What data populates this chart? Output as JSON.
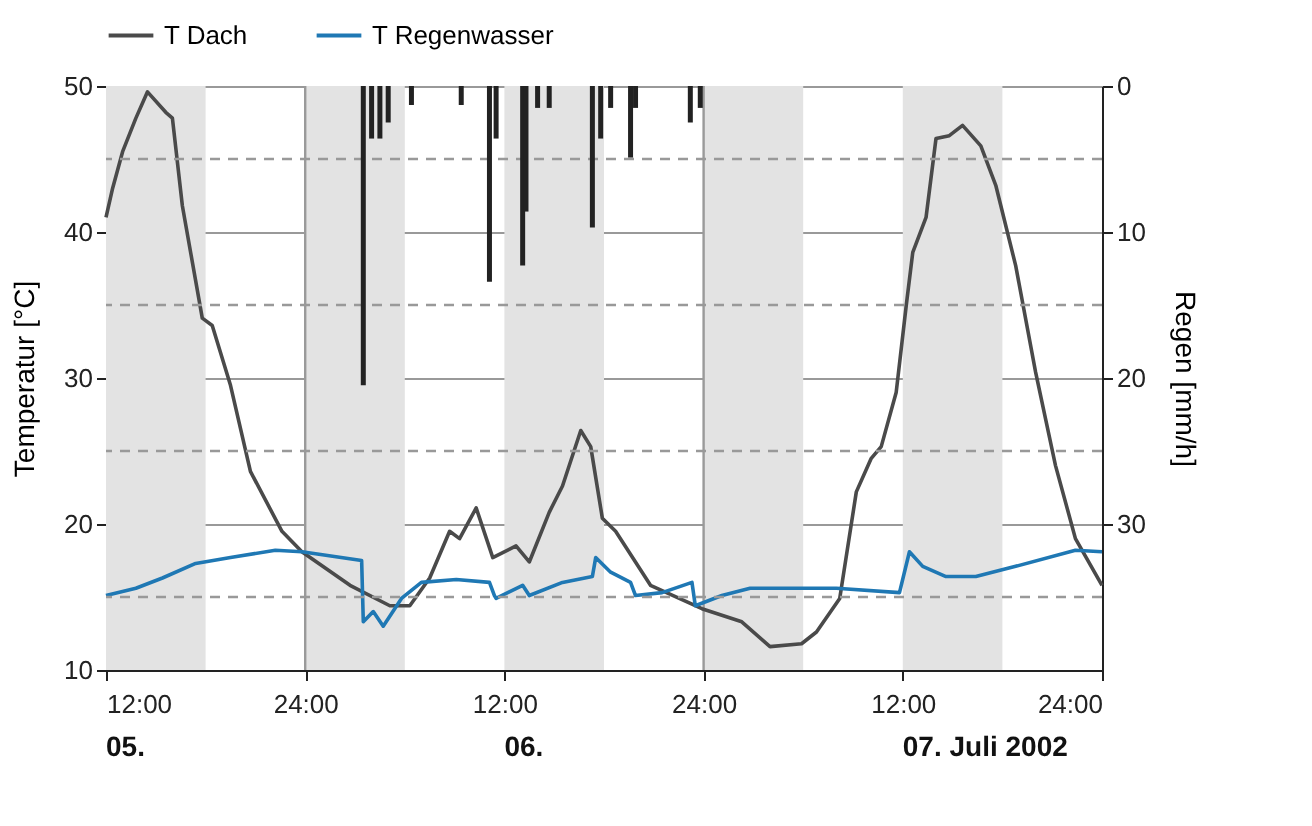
{
  "chart_data": {
    "type": "line",
    "ylabel": "Temperatur [°C]",
    "y2label": "Regen [mm/h]",
    "xlim": [
      "2002-07-05T12:00",
      "2002-07-08T00:00"
    ],
    "xticks": [
      {
        "value": "2002-07-05T12:00",
        "label": "12:00"
      },
      {
        "value": "2002-07-06T00:00",
        "label": "24:00"
      },
      {
        "value": "2002-07-06T12:00",
        "label": "12:00"
      },
      {
        "value": "2002-07-07T00:00",
        "label": "24:00"
      },
      {
        "value": "2002-07-07T12:00",
        "label": "12:00"
      },
      {
        "value": "2002-07-08T00:00",
        "label": "24:00"
      }
    ],
    "ylim": [
      10,
      50
    ],
    "yticks": [
      10,
      20,
      30,
      40,
      50
    ],
    "y2lim": [
      40,
      0
    ],
    "y2ticks": [
      0,
      10,
      20,
      30
    ],
    "grid": "y",
    "legend": "top",
    "series": [
      {
        "name": "T Dach",
        "color": "#4a4a4a",
        "x": [
          "2002-07-05T12:00",
          "2002-07-05T12:24",
          "2002-07-05T13:00",
          "2002-07-05T13:48",
          "2002-07-05T14:30",
          "2002-07-05T15:36",
          "2002-07-05T16:00",
          "2002-07-05T16:36",
          "2002-07-05T17:48",
          "2002-07-05T18:24",
          "2002-07-05T19:30",
          "2002-07-05T20:42",
          "2002-07-05T22:36",
          "2002-07-05T23:48",
          "2002-07-06T02:42",
          "2002-07-06T05:06",
          "2002-07-06T06:18",
          "2002-07-06T07:30",
          "2002-07-06T08:42",
          "2002-07-06T09:18",
          "2002-07-06T10:18",
          "2002-07-06T11:18",
          "2002-07-06T12:42",
          "2002-07-06T13:30",
          "2002-07-06T14:42",
          "2002-07-06T15:30",
          "2002-07-06T16:36",
          "2002-07-06T17:12",
          "2002-07-06T17:54",
          "2002-07-06T18:42",
          "2002-07-06T20:48",
          "2002-07-06T23:54",
          "2002-07-07T02:18",
          "2002-07-07T04:00",
          "2002-07-07T05:54",
          "2002-07-07T06:48",
          "2002-07-07T08:12",
          "2002-07-07T09:12",
          "2002-07-07T10:06",
          "2002-07-07T10:42",
          "2002-07-07T11:36",
          "2002-07-07T12:12",
          "2002-07-07T12:36",
          "2002-07-07T13:24",
          "2002-07-07T14:00",
          "2002-07-07T14:48",
          "2002-07-07T15:36",
          "2002-07-07T16:42",
          "2002-07-07T17:36",
          "2002-07-07T18:48",
          "2002-07-07T20:00",
          "2002-07-07T21:12",
          "2002-07-07T22:24",
          "2002-07-08T00:00"
        ],
        "values": [
          41,
          43,
          45.5,
          47.8,
          49.6,
          48.2,
          47.8,
          41.8,
          34.1,
          33.6,
          29.5,
          23.6,
          19.5,
          18.1,
          15.8,
          14.4,
          14.4,
          16.3,
          19.5,
          19,
          21.1,
          17.7,
          18.5,
          17.4,
          20.8,
          22.6,
          26.4,
          25.3,
          20.4,
          19.5,
          15.8,
          14.2,
          13.3,
          11.6,
          11.8,
          12.6,
          14.9,
          22.2,
          24.5,
          25.3,
          29,
          34.9,
          38.6,
          41,
          46.4,
          46.6,
          47.3,
          45.9,
          43.2,
          37.7,
          30.4,
          24,
          19,
          15.8
        ]
      },
      {
        "name": "T Regenwasser",
        "color": "#1f78b4",
        "x": [
          "2002-07-05T12:00",
          "2002-07-05T13:48",
          "2002-07-05T15:24",
          "2002-07-05T17:24",
          "2002-07-05T19:30",
          "2002-07-05T22:12",
          "2002-07-05T23:48",
          "2002-07-06T03:24",
          "2002-07-06T03:30",
          "2002-07-06T04:06",
          "2002-07-06T04:42",
          "2002-07-06T05:48",
          "2002-07-06T07:00",
          "2002-07-06T09:06",
          "2002-07-06T11:06",
          "2002-07-06T11:24",
          "2002-07-06T11:30",
          "2002-07-06T13:06",
          "2002-07-06T13:30",
          "2002-07-06T15:30",
          "2002-07-06T17:18",
          "2002-07-06T17:30",
          "2002-07-06T18:24",
          "2002-07-06T19:36",
          "2002-07-06T19:54",
          "2002-07-06T21:30",
          "2002-07-06T23:18",
          "2002-07-06T23:30",
          "2002-07-07T01:06",
          "2002-07-07T02:48",
          "2002-07-07T08:00",
          "2002-07-07T11:48",
          "2002-07-07T12:24",
          "2002-07-07T13:12",
          "2002-07-07T14:36",
          "2002-07-07T16:24",
          "2002-07-07T18:48",
          "2002-07-07T22:24",
          "2002-07-08T00:00"
        ],
        "values": [
          15.1,
          15.6,
          16.3,
          17.3,
          17.7,
          18.2,
          18.1,
          17.5,
          13.3,
          14,
          13,
          14.9,
          16,
          16.2,
          16,
          15.1,
          14.9,
          15.8,
          15.1,
          16,
          16.4,
          17.7,
          16.7,
          16,
          15.1,
          15.3,
          16,
          14.4,
          15.1,
          15.6,
          15.6,
          15.3,
          18.1,
          17.1,
          16.4,
          16.4,
          17.1,
          18.2,
          18.1
        ]
      },
      {
        "color": "#222222",
        "type": "bar",
        "axis": "y2",
        "x": [
          "2002-07-06T03:30",
          "2002-07-06T04:00",
          "2002-07-06T04:30",
          "2002-07-06T05:00",
          "2002-07-06T06:24",
          "2002-07-06T09:24",
          "2002-07-06T11:06",
          "2002-07-06T11:30",
          "2002-07-06T13:06",
          "2002-07-06T13:18",
          "2002-07-06T14:00",
          "2002-07-06T14:42",
          "2002-07-06T17:18",
          "2002-07-06T17:48",
          "2002-07-06T18:24",
          "2002-07-06T19:36",
          "2002-07-06T19:54",
          "2002-07-06T23:12",
          "2002-07-06T23:48"
        ],
        "values": [
          20.5,
          3.6,
          3.6,
          2.5,
          1.3,
          1.3,
          13.4,
          3.6,
          12.3,
          8.6,
          1.5,
          1.5,
          9.7,
          3.6,
          1.5,
          4.9,
          1.5,
          2.5,
          1.5
        ]
      }
    ],
    "bands": [
      {
        "axis": "x",
        "from": "2002-07-05T12:00",
        "to": "2002-07-05T18:00",
        "color": "#e3e3e3"
      },
      {
        "axis": "x",
        "from": "2002-07-06T00:00",
        "to": "2002-07-06T06:00",
        "color": "#e3e3e3"
      },
      {
        "axis": "x",
        "from": "2002-07-06T12:00",
        "to": "2002-07-06T18:00",
        "color": "#e3e3e3"
      },
      {
        "axis": "x",
        "from": "2002-07-07T00:00",
        "to": "2002-07-07T06:00",
        "color": "#e3e3e3"
      },
      {
        "axis": "x",
        "from": "2002-07-07T12:00",
        "to": "2002-07-07T18:00",
        "color": "#e3e3e3"
      }
    ],
    "ref_lines": [
      {
        "axis": "x",
        "value": "2002-07-06T00:00",
        "color": "#9a9a9a",
        "line_style": "solid"
      },
      {
        "axis": "x",
        "value": "2002-07-07T00:00",
        "color": "#9a9a9a",
        "line_style": "solid"
      },
      {
        "axis": "y2",
        "value": 5,
        "color": "#999999",
        "line_style": "dashed"
      },
      {
        "axis": "y2",
        "value": 15,
        "color": "#999999",
        "line_style": "dashed"
      },
      {
        "axis": "y2",
        "value": 25,
        "color": "#999999",
        "line_style": "dashed"
      },
      {
        "axis": "y2",
        "value": 35,
        "color": "#999999",
        "line_style": "dashed"
      }
    ],
    "annotations": [
      "05.",
      "06.",
      "07. Juli 2002"
    ]
  }
}
